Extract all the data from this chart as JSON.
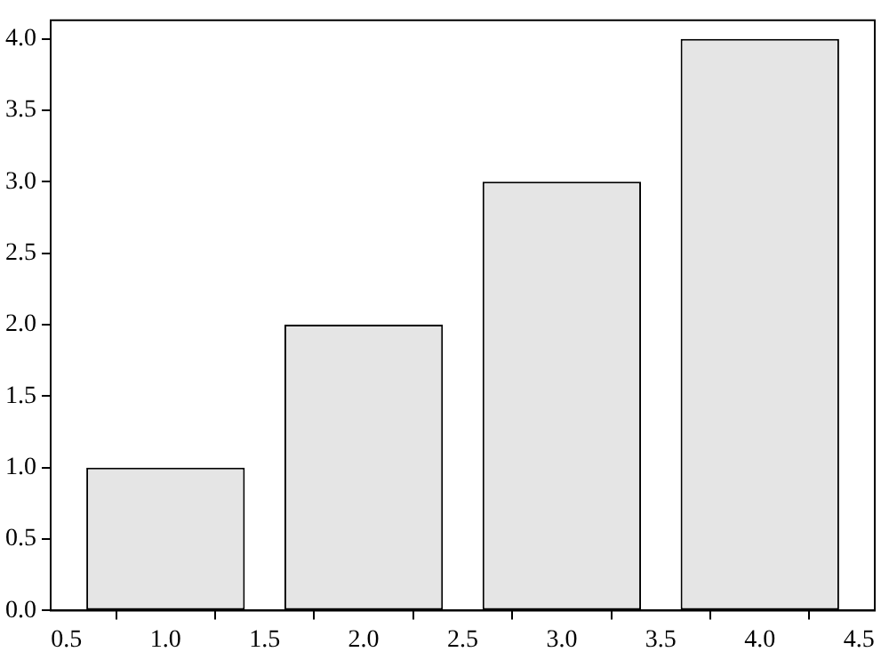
{
  "chart_data": {
    "type": "bar",
    "x": [
      1,
      2,
      3,
      4
    ],
    "values": [
      1,
      2,
      3,
      4
    ],
    "color": "#e5e5e5",
    "xlim": [
      0.42,
      4.58
    ],
    "xticks": [
      {
        "value": 0.5,
        "label": "0.5"
      },
      {
        "value": 1,
        "label": "1.0"
      },
      {
        "value": 1.5,
        "label": "1.5"
      },
      {
        "value": 2,
        "label": "2.0"
      },
      {
        "value": 2.5,
        "label": "2.5"
      },
      {
        "value": 3,
        "label": "3.0"
      },
      {
        "value": 3.5,
        "label": "3.5"
      },
      {
        "value": 4,
        "label": "4.0"
      },
      {
        "value": 4.5,
        "label": "4.5"
      }
    ],
    "ylim": [
      0,
      4.13
    ],
    "yticks": [
      {
        "value": 0,
        "label": "0.0"
      },
      {
        "value": 0.5,
        "label": "0.5"
      },
      {
        "value": 1,
        "label": "1.0"
      },
      {
        "value": 1.5,
        "label": "1.5"
      },
      {
        "value": 2,
        "label": "2.0"
      },
      {
        "value": 2.5,
        "label": "2.5"
      },
      {
        "value": 3,
        "label": "3.0"
      },
      {
        "value": 3.5,
        "label": "3.5"
      },
      {
        "value": 4,
        "label": "4.0"
      }
    ],
    "grid": false,
    "legend": false
  }
}
